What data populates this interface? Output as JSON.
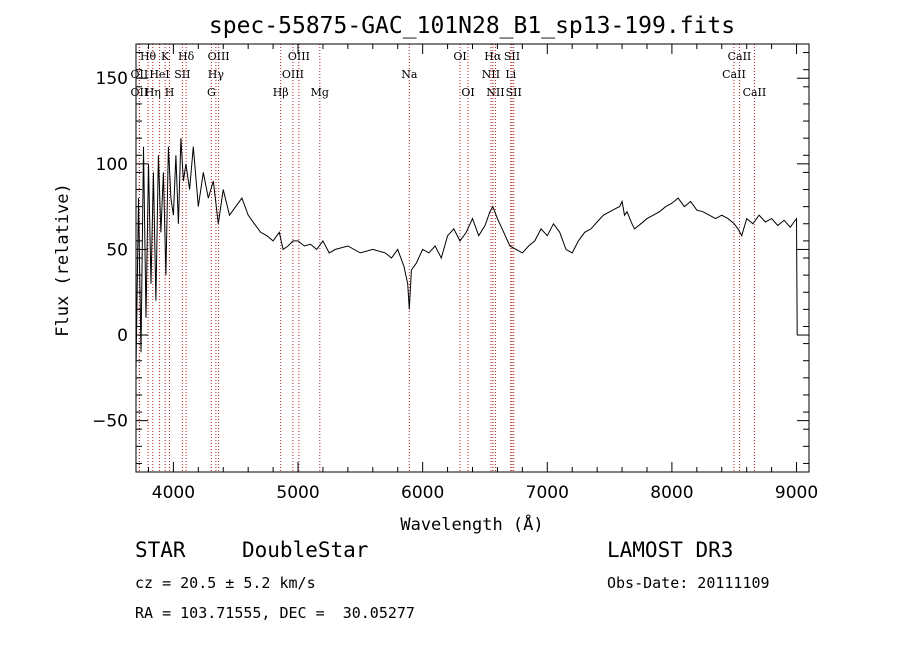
{
  "chart_data": {
    "type": "line",
    "title": "spec-55875-GAC_101N28_B1_sp13-199.fits",
    "xlabel": "Wavelength (Å)",
    "ylabel": "Flux (relative)",
    "xlim": [
      3700,
      9100
    ],
    "ylim": [
      -80,
      170
    ],
    "xticks": [
      4000,
      5000,
      6000,
      7000,
      8000,
      9000
    ],
    "yticks": [
      -50,
      0,
      50,
      100,
      150
    ],
    "line_color": "#000000",
    "marker_color": "#b22222",
    "series": [
      {
        "name": "spectrum",
        "x": [
          3700,
          3720,
          3740,
          3760,
          3780,
          3800,
          3820,
          3840,
          3860,
          3880,
          3900,
          3920,
          3940,
          3960,
          3980,
          4000,
          4020,
          4040,
          4060,
          4080,
          4100,
          4130,
          4160,
          4200,
          4240,
          4280,
          4320,
          4360,
          4400,
          4450,
          4500,
          4550,
          4600,
          4650,
          4700,
          4750,
          4800,
          4850,
          4880,
          4920,
          4960,
          5000,
          5050,
          5100,
          5150,
          5200,
          5250,
          5300,
          5400,
          5500,
          5600,
          5700,
          5750,
          5800,
          5850,
          5880,
          5893,
          5910,
          5950,
          6000,
          6050,
          6100,
          6150,
          6200,
          6250,
          6300,
          6350,
          6400,
          6450,
          6500,
          6540,
          6563,
          6600,
          6650,
          6700,
          6750,
          6800,
          6850,
          6900,
          6950,
          7000,
          7050,
          7100,
          7150,
          7200,
          7250,
          7300,
          7350,
          7400,
          7450,
          7500,
          7550,
          7580,
          7600,
          7620,
          7640,
          7680,
          7700,
          7750,
          7800,
          7850,
          7900,
          7950,
          8000,
          8050,
          8100,
          8150,
          8200,
          8250,
          8300,
          8350,
          8400,
          8450,
          8500,
          8530,
          8560,
          8600,
          8650,
          8700,
          8750,
          8800,
          8850,
          8900,
          8950,
          8980,
          9000,
          9005
        ],
        "y": [
          -20,
          80,
          -10,
          110,
          10,
          100,
          30,
          95,
          20,
          105,
          60,
          95,
          35,
          110,
          80,
          70,
          105,
          65,
          115,
          90,
          100,
          85,
          110,
          75,
          95,
          80,
          90,
          65,
          85,
          70,
          75,
          80,
          70,
          65,
          60,
          58,
          55,
          60,
          50,
          52,
          55,
          55,
          52,
          53,
          50,
          55,
          48,
          50,
          52,
          48,
          50,
          48,
          45,
          50,
          40,
          30,
          15,
          38,
          42,
          50,
          48,
          52,
          45,
          58,
          62,
          55,
          60,
          68,
          58,
          64,
          72,
          75,
          68,
          60,
          52,
          50,
          48,
          52,
          55,
          62,
          58,
          65,
          60,
          50,
          48,
          55,
          60,
          62,
          66,
          70,
          72,
          74,
          75,
          78,
          70,
          72,
          65,
          62,
          65,
          68,
          70,
          72,
          75,
          77,
          80,
          75,
          78,
          73,
          72,
          70,
          68,
          70,
          68,
          65,
          62,
          58,
          68,
          65,
          70,
          66,
          68,
          64,
          67,
          63,
          66,
          68,
          0
        ]
      }
    ],
    "lines": [
      {
        "name": "Hθ",
        "wave": 3797,
        "row": 1
      },
      {
        "name": "OII",
        "wave": 3727,
        "row": 2
      },
      {
        "name": "HeI",
        "wave": 3889,
        "row": 2
      },
      {
        "name": "OII",
        "wave": 3727,
        "row": 3
      },
      {
        "name": "Hη",
        "wave": 3835,
        "row": 3
      },
      {
        "name": "K",
        "wave": 3934,
        "row": 1
      },
      {
        "name": "SII",
        "wave": 4072,
        "row": 2
      },
      {
        "name": "H",
        "wave": 3969,
        "row": 3
      },
      {
        "name": "Hδ",
        "wave": 4102,
        "row": 1
      },
      {
        "name": "OIII",
        "wave": 4363,
        "row": 1
      },
      {
        "name": "Hγ",
        "wave": 4341,
        "row": 2
      },
      {
        "name": "G",
        "wave": 4305,
        "row": 3
      },
      {
        "name": "Hβ",
        "wave": 4861,
        "row": 3
      },
      {
        "name": "OIII",
        "wave": 5007,
        "row": 1
      },
      {
        "name": "OIII",
        "wave": 4959,
        "row": 2
      },
      {
        "name": "Mg",
        "wave": 5175,
        "row": 3
      },
      {
        "name": "Na",
        "wave": 5893,
        "row": 2
      },
      {
        "name": "OI",
        "wave": 6300,
        "row": 1
      },
      {
        "name": "OI",
        "wave": 6364,
        "row": 3
      },
      {
        "name": "Hα",
        "wave": 6563,
        "row": 1
      },
      {
        "name": "NII",
        "wave": 6548,
        "row": 2
      },
      {
        "name": "NII",
        "wave": 6584,
        "row": 3
      },
      {
        "name": "SII",
        "wave": 6717,
        "row": 1
      },
      {
        "name": "Li",
        "wave": 6707,
        "row": 2
      },
      {
        "name": "SII",
        "wave": 6731,
        "row": 3
      },
      {
        "name": "CaII",
        "wave": 8542,
        "row": 1
      },
      {
        "name": "CaII",
        "wave": 8498,
        "row": 2
      },
      {
        "name": "CaII",
        "wave": 8662,
        "row": 3
      }
    ]
  },
  "footer": {
    "class_label": "STAR",
    "subclass_label": "DoubleStar",
    "survey": "LAMOST DR3",
    "cz": "cz = 20.5 ± 5.2 km/s",
    "obs_date": "Obs-Date: 20111109",
    "coords": "RA = 103.71555, DEC =  30.05277"
  }
}
